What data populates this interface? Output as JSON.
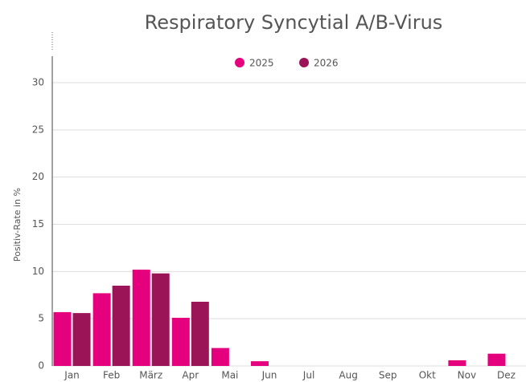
{
  "chart_data": {
    "type": "bar",
    "title": "Respiratory Syncytial A/B-Virus",
    "y_label": "Positiv-Rate in %",
    "categories": [
      "Jan",
      "Feb",
      "März",
      "Apr",
      "Mai",
      "Jun",
      "Jul",
      "Aug",
      "Sep",
      "Okt",
      "Nov",
      "Dez"
    ],
    "series": [
      {
        "name": "2025",
        "color": "#e5007d",
        "values": [
          5.7,
          7.7,
          10.2,
          5.1,
          1.9,
          0.5,
          0,
          0,
          0,
          0,
          0.6,
          1.3
        ]
      },
      {
        "name": "2026",
        "color": "#9b1458",
        "values": [
          5.6,
          8.5,
          9.8,
          6.8,
          null,
          null,
          null,
          null,
          null,
          null,
          null,
          null
        ]
      }
    ],
    "ylim": [
      0,
      33
    ],
    "yticks": [
      0,
      5,
      10,
      15,
      20,
      25,
      30
    ],
    "grid": true,
    "legend": "top"
  }
}
